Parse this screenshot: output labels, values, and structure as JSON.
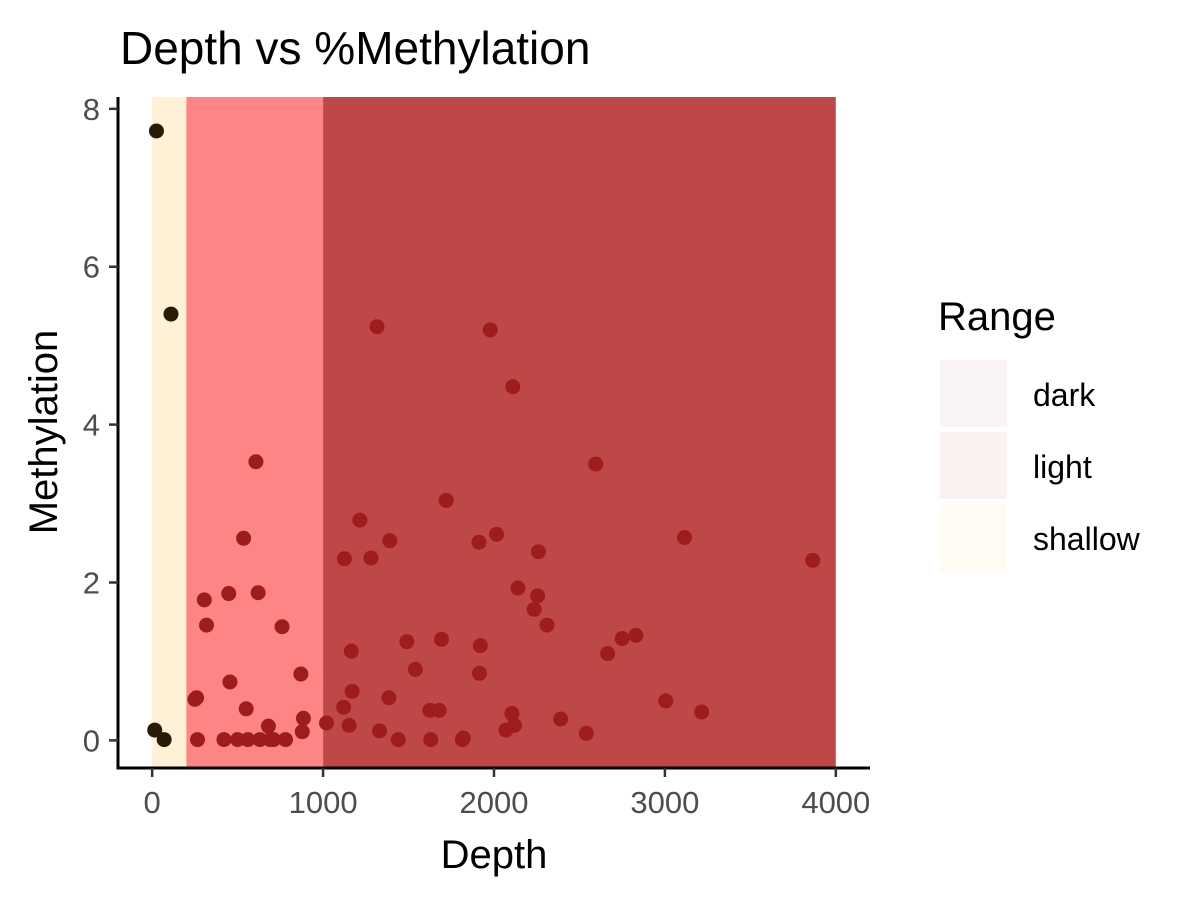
{
  "chart_data": {
    "type": "scatter",
    "title": "Depth vs %Methylation",
    "xlabel": "Depth",
    "ylabel": "Methylation",
    "xlim": [
      -200,
      4200
    ],
    "ylim": [
      -0.35,
      8.15
    ],
    "xticks": [
      0,
      1000,
      2000,
      3000,
      4000
    ],
    "xtick_labels": [
      "0",
      "1000",
      "2000",
      "3000",
      "4000"
    ],
    "yticks": [
      0,
      2,
      4,
      6,
      8
    ],
    "ytick_labels": [
      "0",
      "2",
      "4",
      "6",
      "8"
    ],
    "grid": false,
    "legend": {
      "title": "Range",
      "placement": "right",
      "items": [
        {
          "label": "dark",
          "color": "#faf3f3"
        },
        {
          "label": "light",
          "color": "#fbf1f1"
        },
        {
          "label": "shallow",
          "color": "#fffbf3"
        }
      ]
    },
    "bands": [
      {
        "range": "shallow",
        "x_from": 0,
        "x_to": 200,
        "color": "#fff1d6"
      },
      {
        "range": "light",
        "x_from": 200,
        "x_to": 1000,
        "color": "#fd8585"
      },
      {
        "range": "dark",
        "x_from": 1000,
        "x_to": 4000,
        "color": "#be4848"
      }
    ],
    "colors": {
      "shallow_points": "#2a1a08",
      "deep_points": "#9e1c1c"
    },
    "series": [
      {
        "points_shallow": [
          [
            25,
            7.72
          ],
          [
            110,
            5.4
          ],
          [
            15,
            0.13
          ],
          [
            70,
            0.01
          ]
        ],
        "points_deep": [
          [
            250,
            0.52
          ],
          [
            260,
            0.54
          ],
          [
            265,
            0.01
          ],
          [
            305,
            1.78
          ],
          [
            318,
            1.46
          ],
          [
            420,
            0.01
          ],
          [
            448,
            1.86
          ],
          [
            455,
            0.74
          ],
          [
            500,
            0.01
          ],
          [
            535,
            2.56
          ],
          [
            550,
            0.4
          ],
          [
            560,
            0.01
          ],
          [
            607,
            3.53
          ],
          [
            620,
            1.87
          ],
          [
            630,
            0.01
          ],
          [
            680,
            0.18
          ],
          [
            690,
            0.01
          ],
          [
            710,
            0.01
          ],
          [
            760,
            1.44
          ],
          [
            780,
            0.01
          ],
          [
            870,
            0.84
          ],
          [
            878,
            0.11
          ],
          [
            885,
            0.28
          ],
          [
            1020,
            0.22
          ],
          [
            1120,
            0.42
          ],
          [
            1125,
            2.3
          ],
          [
            1152,
            0.19
          ],
          [
            1165,
            1.13
          ],
          [
            1170,
            0.62
          ],
          [
            1215,
            2.79
          ],
          [
            1280,
            2.31
          ],
          [
            1315,
            5.24
          ],
          [
            1330,
            0.12
          ],
          [
            1385,
            0.54
          ],
          [
            1390,
            2.53
          ],
          [
            1440,
            0.01
          ],
          [
            1490,
            1.25
          ],
          [
            1540,
            0.9
          ],
          [
            1625,
            0.38
          ],
          [
            1630,
            0.01
          ],
          [
            1680,
            0.38
          ],
          [
            1693,
            1.28
          ],
          [
            1720,
            3.04
          ],
          [
            1815,
            0.01
          ],
          [
            1820,
            0.03
          ],
          [
            1912,
            2.51
          ],
          [
            1915,
            0.85
          ],
          [
            1920,
            1.2
          ],
          [
            1978,
            5.2
          ],
          [
            2015,
            2.61
          ],
          [
            2070,
            0.13
          ],
          [
            2105,
            0.34
          ],
          [
            2110,
            4.48
          ],
          [
            2120,
            0.19
          ],
          [
            2140,
            1.93
          ],
          [
            2235,
            1.66
          ],
          [
            2255,
            1.83
          ],
          [
            2260,
            2.39
          ],
          [
            2310,
            1.46
          ],
          [
            2390,
            0.27
          ],
          [
            2540,
            0.09
          ],
          [
            2595,
            3.5
          ],
          [
            2665,
            1.1
          ],
          [
            2750,
            1.29
          ],
          [
            2830,
            1.33
          ],
          [
            3005,
            0.5
          ],
          [
            3115,
            2.57
          ],
          [
            3215,
            0.36
          ],
          [
            3865,
            2.28
          ]
        ]
      }
    ]
  }
}
